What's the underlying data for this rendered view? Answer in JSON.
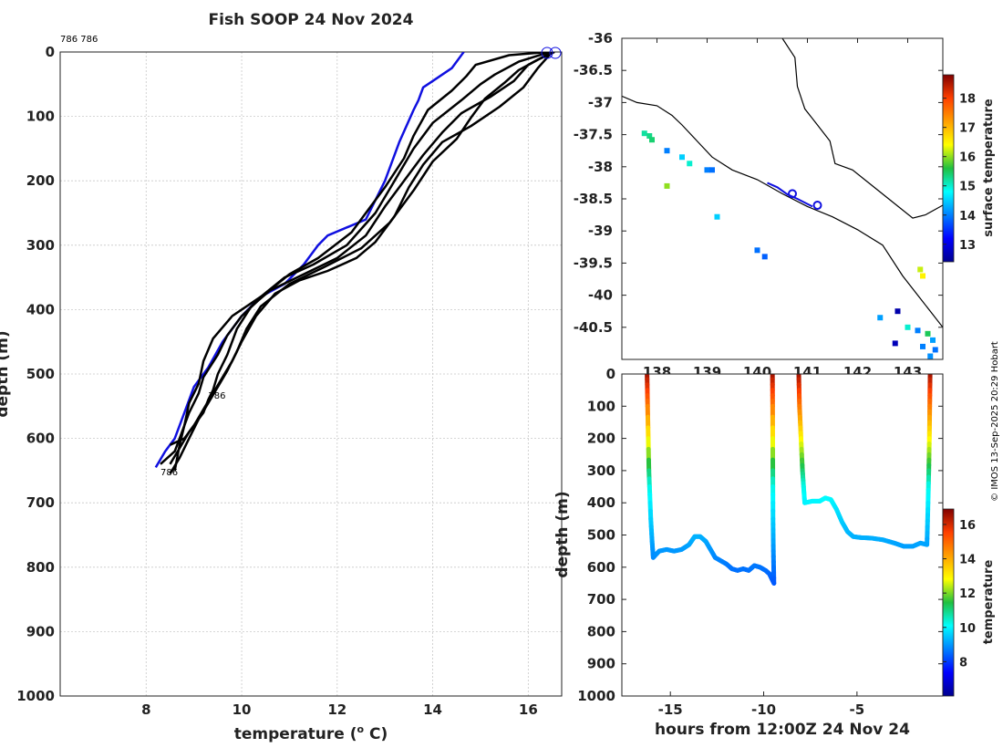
{
  "title": "Fish SOOP 24 Nov 2024",
  "credit": "© IMOS 13-Sep-2025 20:29 Hobart",
  "colors": {
    "blue": "#1010e0",
    "black": "#000000"
  },
  "chart_data": [
    {
      "id": "profile",
      "type": "line",
      "title": "Fish SOOP 24 Nov 2024",
      "xlabel": "temperature (° C)",
      "xlabel_parts": [
        "temperature (",
        "o",
        " C)"
      ],
      "ylabel": "depth (m)",
      "xlim": [
        6.2,
        16.7
      ],
      "ylim": [
        0,
        1000
      ],
      "y_inverted": true,
      "xticks": [
        8,
        10,
        12,
        14,
        16
      ],
      "yticks": [
        0,
        100,
        200,
        300,
        400,
        500,
        600,
        700,
        800,
        900,
        1000
      ],
      "grid": true,
      "top_annotation": "786 786",
      "annotations": [
        {
          "text": "786",
          "x": 9.3,
          "y": 538
        },
        {
          "text": "786",
          "x": 8.3,
          "y": 657
        }
      ],
      "series": [
        {
          "name": "reference",
          "color": "#1010e0",
          "points": [
            [
              14.65,
              0
            ],
            [
              14.4,
              25
            ],
            [
              14.0,
              45
            ],
            [
              13.8,
              55
            ],
            [
              13.7,
              75
            ],
            [
              13.6,
              90
            ],
            [
              13.3,
              140
            ],
            [
              13.0,
              200
            ],
            [
              12.8,
              230
            ],
            [
              12.6,
              260
            ],
            [
              11.8,
              285
            ],
            [
              11.6,
              300
            ],
            [
              11.3,
              330
            ],
            [
              10.9,
              360
            ],
            [
              10.4,
              380
            ],
            [
              10.0,
              410
            ],
            [
              9.6,
              450
            ],
            [
              9.3,
              490
            ],
            [
              9.0,
              520
            ],
            [
              8.8,
              560
            ],
            [
              8.6,
              600
            ],
            [
              8.4,
              620
            ],
            [
              8.2,
              645
            ]
          ]
        },
        {
          "name": "cast-1",
          "color": "#000000",
          "points": [
            [
              16.4,
              0
            ],
            [
              15.6,
              5
            ],
            [
              14.9,
              20
            ],
            [
              14.7,
              38
            ],
            [
              14.4,
              60
            ],
            [
              13.9,
              90
            ],
            [
              13.6,
              130
            ],
            [
              13.4,
              165
            ],
            [
              13.0,
              210
            ],
            [
              12.7,
              240
            ],
            [
              12.3,
              280
            ],
            [
              11.6,
              320
            ],
            [
              11.0,
              345
            ],
            [
              10.5,
              375
            ],
            [
              10.0,
              410
            ],
            [
              9.7,
              440
            ],
            [
              9.5,
              470
            ],
            [
              9.2,
              505
            ],
            [
              9.1,
              530
            ],
            [
              8.9,
              560
            ],
            [
              8.7,
              600
            ],
            [
              8.6,
              620
            ],
            [
              8.3,
              640
            ]
          ]
        },
        {
          "name": "cast-2",
          "color": "#000000",
          "points": [
            [
              16.45,
              0
            ],
            [
              15.8,
              15
            ],
            [
              15.3,
              35
            ],
            [
              15.0,
              50
            ],
            [
              14.6,
              75
            ],
            [
              14.0,
              110
            ],
            [
              13.6,
              150
            ],
            [
              13.2,
              200
            ],
            [
              12.8,
              250
            ],
            [
              12.2,
              300
            ],
            [
              11.5,
              330
            ],
            [
              10.9,
              350
            ],
            [
              10.4,
              380
            ],
            [
              9.8,
              410
            ],
            [
              9.4,
              445
            ],
            [
              9.2,
              480
            ],
            [
              9.1,
              515
            ],
            [
              8.9,
              545
            ],
            [
              8.8,
              580
            ],
            [
              8.7,
              610
            ],
            [
              8.6,
              650
            ]
          ]
        },
        {
          "name": "cast-3",
          "color": "#000000",
          "points": [
            [
              16.5,
              0
            ],
            [
              16.0,
              20
            ],
            [
              15.7,
              45
            ],
            [
              15.2,
              70
            ],
            [
              14.6,
              95
            ],
            [
              14.2,
              125
            ],
            [
              13.8,
              160
            ],
            [
              13.4,
              200
            ],
            [
              13.0,
              240
            ],
            [
              12.6,
              285
            ],
            [
              12.0,
              320
            ],
            [
              11.3,
              345
            ],
            [
              10.6,
              370
            ],
            [
              10.2,
              395
            ],
            [
              9.9,
              430
            ],
            [
              9.7,
              470
            ],
            [
              9.5,
              500
            ],
            [
              9.4,
              525
            ],
            [
              9.3,
              540
            ],
            [
              9.2,
              560
            ],
            [
              8.9,
              590
            ],
            [
              8.7,
              615
            ],
            [
              8.5,
              640
            ]
          ]
        },
        {
          "name": "cast-4",
          "color": "#000000",
          "points": [
            [
              16.5,
              0
            ],
            [
              16.2,
              25
            ],
            [
              15.9,
              55
            ],
            [
              15.4,
              85
            ],
            [
              14.8,
              115
            ],
            [
              14.2,
              140
            ],
            [
              13.8,
              175
            ],
            [
              13.5,
              210
            ],
            [
              13.2,
              255
            ],
            [
              12.8,
              295
            ],
            [
              12.4,
              320
            ],
            [
              11.8,
              340
            ],
            [
              11.2,
              355
            ],
            [
              10.7,
              375
            ],
            [
              10.3,
              410
            ],
            [
              10.0,
              450
            ],
            [
              9.8,
              480
            ],
            [
              9.6,
              505
            ],
            [
              9.4,
              530
            ],
            [
              9.2,
              555
            ],
            [
              9.0,
              580
            ],
            [
              8.8,
              600
            ],
            [
              8.5,
              610
            ]
          ]
        },
        {
          "name": "cast-5",
          "color": "#000000",
          "points": [
            [
              16.55,
              0
            ],
            [
              16.2,
              12
            ],
            [
              15.8,
              28
            ],
            [
              15.5,
              48
            ],
            [
              15.1,
              72
            ],
            [
              14.8,
              102
            ],
            [
              14.5,
              135
            ],
            [
              14.0,
              170
            ],
            [
              13.6,
              215
            ],
            [
              13.1,
              265
            ],
            [
              12.5,
              305
            ],
            [
              11.7,
              335
            ],
            [
              11.0,
              360
            ],
            [
              10.4,
              395
            ],
            [
              10.1,
              430
            ],
            [
              9.9,
              465
            ],
            [
              9.7,
              495
            ],
            [
              9.5,
              520
            ],
            [
              9.3,
              545
            ],
            [
              9.1,
              570
            ],
            [
              8.9,
              600
            ],
            [
              8.7,
              630
            ],
            [
              8.5,
              655
            ]
          ]
        }
      ]
    },
    {
      "id": "map",
      "type": "scatter",
      "xlim": [
        137.3,
        143.7
      ],
      "ylim": [
        -41.0,
        -36.0
      ],
      "xticks": [
        138,
        139,
        140,
        141,
        142,
        143
      ],
      "xtick_labels": [
        "138",
        "139",
        "140",
        "141",
        "142",
        "143"
      ],
      "yticks": [
        -36,
        -36.5,
        -37,
        -37.5,
        -38,
        -38.5,
        -39,
        -39.5,
        -40,
        -40.5
      ],
      "ytick_labels": [
        "-36",
        "-36.5",
        "-37",
        "-37.5",
        "-38",
        "-38.5",
        "-39",
        "-39.5",
        "-40",
        "-40.5"
      ],
      "colorbar": {
        "label": "surface temperature",
        "range": [
          12.4,
          18.8
        ],
        "ticks": [
          13,
          14,
          15,
          16,
          17,
          18
        ]
      },
      "coastline": [
        [
          137.3,
          -36.9
        ],
        [
          137.6,
          -37.0
        ],
        [
          138.0,
          -37.05
        ],
        [
          138.3,
          -37.2
        ],
        [
          138.5,
          -37.35
        ],
        [
          138.8,
          -37.6
        ],
        [
          139.1,
          -37.85
        ],
        [
          139.5,
          -38.05
        ],
        [
          140.0,
          -38.2
        ],
        [
          140.5,
          -38.42
        ],
        [
          141.0,
          -38.62
        ],
        [
          141.5,
          -38.78
        ],
        [
          142.0,
          -38.98
        ],
        [
          142.5,
          -39.22
        ],
        [
          142.9,
          -39.7
        ],
        [
          143.2,
          -40.0
        ],
        [
          143.7,
          -40.5
        ]
      ],
      "coastline_2": [
        [
          140.5,
          -36.0
        ],
        [
          140.75,
          -36.3
        ],
        [
          140.8,
          -36.75
        ],
        [
          140.95,
          -37.1
        ],
        [
          141.2,
          -37.35
        ],
        [
          141.45,
          -37.6
        ],
        [
          141.55,
          -37.95
        ],
        [
          141.9,
          -38.05
        ],
        [
          142.3,
          -38.3
        ],
        [
          142.7,
          -38.55
        ],
        [
          143.1,
          -38.8
        ],
        [
          143.35,
          -38.75
        ],
        [
          143.7,
          -38.6
        ]
      ],
      "track": [
        [
          140.2,
          -38.25
        ],
        [
          140.4,
          -38.32
        ],
        [
          140.6,
          -38.43
        ],
        [
          140.8,
          -38.5
        ],
        [
          141.1,
          -38.62
        ]
      ],
      "stations": [
        [
          140.7,
          -38.42
        ],
        [
          141.2,
          -38.6
        ]
      ],
      "sst_pixels": [
        [
          137.75,
          -37.48,
          15.2
        ],
        [
          137.85,
          -37.52,
          15.3
        ],
        [
          137.9,
          -37.58,
          15.4
        ],
        [
          138.2,
          -37.75,
          14.0
        ],
        [
          138.5,
          -37.85,
          14.5
        ],
        [
          138.65,
          -37.95,
          15.0
        ],
        [
          139.0,
          -38.05,
          14.0
        ],
        [
          139.1,
          -38.05,
          13.9
        ],
        [
          138.2,
          -38.3,
          16.0
        ],
        [
          139.2,
          -38.78,
          14.5
        ],
        [
          140.0,
          -39.3,
          13.9
        ],
        [
          140.15,
          -39.4,
          13.8
        ],
        [
          143.25,
          -39.6,
          16.2
        ],
        [
          143.3,
          -39.7,
          16.5
        ],
        [
          142.45,
          -40.35,
          14.2
        ],
        [
          142.8,
          -40.25,
          12.6
        ],
        [
          143.0,
          -40.5,
          15.0
        ],
        [
          143.2,
          -40.55,
          14.0
        ],
        [
          143.4,
          -40.6,
          15.5
        ],
        [
          143.5,
          -40.7,
          14.2
        ],
        [
          143.3,
          -40.8,
          14.0
        ],
        [
          143.55,
          -40.85,
          13.9
        ],
        [
          143.45,
          -40.95,
          14.1
        ],
        [
          142.75,
          -40.75,
          12.7
        ]
      ]
    },
    {
      "id": "timeseries",
      "type": "scatter",
      "xlabel": "hours from 12:00Z 24 Nov 24",
      "ylabel": "depth (m)",
      "xlim": [
        -17.6,
        -0.4
      ],
      "ylim": [
        0,
        1000
      ],
      "y_inverted": true,
      "xticks": [
        -15,
        -10,
        -5
      ],
      "yticks": [
        0,
        100,
        200,
        300,
        400,
        500,
        600,
        700,
        800,
        900,
        1000
      ],
      "colorbar": {
        "label": "temperature",
        "range": [
          6.0,
          16.9
        ],
        "ticks": [
          8,
          10,
          12,
          14,
          16
        ]
      },
      "casts": [
        {
          "x": [
            -16.25,
            -16.22,
            -16.15,
            -16.05,
            -15.98,
            -15.92
          ],
          "depth": [
            0,
            100,
            300,
            450,
            520,
            570
          ]
        },
        {
          "x": [
            -9.53,
            -9.52,
            -9.51,
            -9.5,
            -9.48,
            -9.45
          ],
          "depth": [
            0,
            100,
            300,
            450,
            550,
            650
          ]
        },
        {
          "x": [
            -8.12,
            -8.08,
            -8.0,
            -7.92,
            -7.85,
            -7.8
          ],
          "depth": [
            0,
            100,
            200,
            300,
            360,
            400
          ]
        },
        {
          "x": [
            -1.08,
            -1.1,
            -1.12,
            -1.15,
            -1.2,
            -1.25
          ],
          "depth": [
            0,
            100,
            200,
            300,
            420,
            530
          ]
        }
      ],
      "bottom_tracks": [
        {
          "x": [
            -15.92,
            -15.6,
            -15.2,
            -14.8,
            -14.4,
            -14.0,
            -13.7,
            -13.4,
            -13.1,
            -12.9,
            -12.6,
            -12.3,
            -12.0,
            -11.7,
            -11.4,
            -11.1,
            -10.8,
            -10.5,
            -10.2,
            -9.9,
            -9.7,
            -9.45
          ],
          "depth": [
            570,
            550,
            545,
            550,
            545,
            530,
            505,
            505,
            520,
            540,
            570,
            580,
            590,
            605,
            610,
            605,
            610,
            595,
            600,
            610,
            620,
            650
          ]
        },
        {
          "x": [
            -7.8,
            -7.4,
            -7.0,
            -6.7,
            -6.4,
            -6.1,
            -5.8,
            -5.5,
            -5.2,
            -4.8,
            -4.2,
            -3.6,
            -3.0,
            -2.5,
            -2.0,
            -1.6,
            -1.25
          ],
          "depth": [
            400,
            395,
            395,
            385,
            390,
            420,
            460,
            490,
            505,
            508,
            510,
            515,
            525,
            535,
            535,
            525,
            530
          ]
        }
      ]
    }
  ]
}
